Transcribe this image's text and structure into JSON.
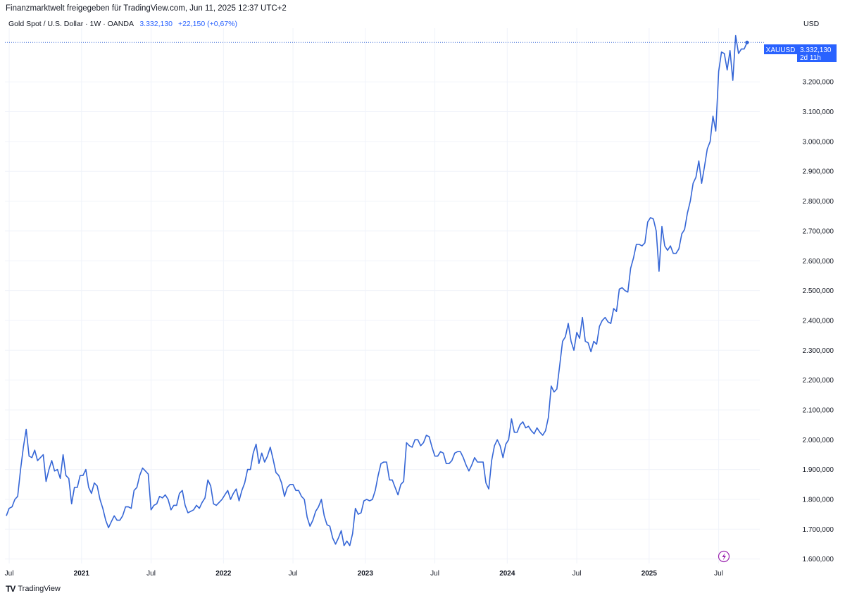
{
  "header": {
    "source_line": "Finanzmarktwelt freigegeben für TradingView.com, Jun 11, 2025 12:37 UTC+2",
    "symbol_desc": "Gold Spot / U.S. Dollar · 1W · OANDA",
    "last_price": "3.332,130",
    "change": "+22,150 (+0,67%)",
    "currency": "USD"
  },
  "price_tag": {
    "ticker": "XAUUSD",
    "value": "3.332,130",
    "countdown": "2d 11h"
  },
  "footer": {
    "brand": "TradingView",
    "brand_mark": "TV"
  },
  "icons": {
    "lightning": "lightning-icon"
  },
  "colors": {
    "line": "#3566d6",
    "accent": "#2962ff",
    "grid": "#f0f3fa",
    "text": "#131722",
    "lightning": "#9c27b0"
  },
  "chart_data": {
    "type": "line",
    "series": [
      {
        "values": [
          [
            2020.47,
            1745
          ],
          [
            2020.49,
            1770
          ],
          [
            2020.51,
            1775
          ],
          [
            2020.53,
            1800
          ],
          [
            2020.55,
            1810
          ],
          [
            2020.57,
            1900
          ],
          [
            2020.59,
            1975
          ],
          [
            2020.61,
            2035
          ],
          [
            2020.63,
            1945
          ],
          [
            2020.65,
            1940
          ],
          [
            2020.67,
            1965
          ],
          [
            2020.69,
            1930
          ],
          [
            2020.71,
            1940
          ],
          [
            2020.73,
            1950
          ],
          [
            2020.75,
            1860
          ],
          [
            2020.77,
            1900
          ],
          [
            2020.79,
            1930
          ],
          [
            2020.81,
            1895
          ],
          [
            2020.83,
            1900
          ],
          [
            2020.85,
            1870
          ],
          [
            2020.87,
            1950
          ],
          [
            2020.89,
            1880
          ],
          [
            2020.91,
            1870
          ],
          [
            2020.93,
            1785
          ],
          [
            2020.95,
            1840
          ],
          [
            2020.97,
            1840
          ],
          [
            2020.99,
            1880
          ],
          [
            2021.01,
            1880
          ],
          [
            2021.03,
            1900
          ],
          [
            2021.05,
            1840
          ],
          [
            2021.07,
            1820
          ],
          [
            2021.09,
            1855
          ],
          [
            2021.11,
            1845
          ],
          [
            2021.13,
            1800
          ],
          [
            2021.15,
            1770
          ],
          [
            2021.17,
            1730
          ],
          [
            2021.19,
            1705
          ],
          [
            2021.21,
            1725
          ],
          [
            2021.23,
            1745
          ],
          [
            2021.25,
            1730
          ],
          [
            2021.27,
            1730
          ],
          [
            2021.29,
            1745
          ],
          [
            2021.31,
            1775
          ],
          [
            2021.33,
            1775
          ],
          [
            2021.35,
            1770
          ],
          [
            2021.37,
            1830
          ],
          [
            2021.39,
            1840
          ],
          [
            2021.41,
            1880
          ],
          [
            2021.43,
            1905
          ],
          [
            2021.45,
            1895
          ],
          [
            2021.47,
            1885
          ],
          [
            2021.49,
            1765
          ],
          [
            2021.51,
            1780
          ],
          [
            2021.53,
            1785
          ],
          [
            2021.55,
            1810
          ],
          [
            2021.57,
            1805
          ],
          [
            2021.59,
            1815
          ],
          [
            2021.61,
            1800
          ],
          [
            2021.63,
            1765
          ],
          [
            2021.65,
            1780
          ],
          [
            2021.67,
            1780
          ],
          [
            2021.69,
            1820
          ],
          [
            2021.71,
            1830
          ],
          [
            2021.73,
            1780
          ],
          [
            2021.75,
            1755
          ],
          [
            2021.77,
            1760
          ],
          [
            2021.79,
            1765
          ],
          [
            2021.81,
            1780
          ],
          [
            2021.83,
            1770
          ],
          [
            2021.85,
            1790
          ],
          [
            2021.87,
            1805
          ],
          [
            2021.89,
            1865
          ],
          [
            2021.91,
            1845
          ],
          [
            2021.93,
            1785
          ],
          [
            2021.95,
            1780
          ],
          [
            2021.97,
            1790
          ],
          [
            2021.99,
            1800
          ],
          [
            2022.01,
            1815
          ],
          [
            2022.03,
            1830
          ],
          [
            2022.05,
            1800
          ],
          [
            2022.07,
            1820
          ],
          [
            2022.09,
            1835
          ],
          [
            2022.11,
            1795
          ],
          [
            2022.13,
            1830
          ],
          [
            2022.15,
            1855
          ],
          [
            2022.17,
            1900
          ],
          [
            2022.19,
            1900
          ],
          [
            2022.21,
            1955
          ],
          [
            2022.23,
            1985
          ],
          [
            2022.25,
            1920
          ],
          [
            2022.27,
            1955
          ],
          [
            2022.29,
            1925
          ],
          [
            2022.31,
            1945
          ],
          [
            2022.33,
            1975
          ],
          [
            2022.35,
            1935
          ],
          [
            2022.37,
            1890
          ],
          [
            2022.39,
            1880
          ],
          [
            2022.41,
            1855
          ],
          [
            2022.43,
            1810
          ],
          [
            2022.45,
            1840
          ],
          [
            2022.47,
            1850
          ],
          [
            2022.49,
            1850
          ],
          [
            2022.51,
            1830
          ],
          [
            2022.53,
            1830
          ],
          [
            2022.55,
            1810
          ],
          [
            2022.57,
            1800
          ],
          [
            2022.59,
            1740
          ],
          [
            2022.61,
            1710
          ],
          [
            2022.63,
            1730
          ],
          [
            2022.65,
            1760
          ],
          [
            2022.67,
            1775
          ],
          [
            2022.69,
            1800
          ],
          [
            2022.71,
            1745
          ],
          [
            2022.73,
            1715
          ],
          [
            2022.75,
            1710
          ],
          [
            2022.77,
            1670
          ],
          [
            2022.79,
            1650
          ],
          [
            2022.81,
            1670
          ],
          [
            2022.83,
            1695
          ],
          [
            2022.85,
            1645
          ],
          [
            2022.87,
            1660
          ],
          [
            2022.89,
            1645
          ],
          [
            2022.91,
            1685
          ],
          [
            2022.93,
            1770
          ],
          [
            2022.95,
            1750
          ],
          [
            2022.97,
            1755
          ],
          [
            2022.99,
            1795
          ],
          [
            2023.01,
            1800
          ],
          [
            2023.03,
            1795
          ],
          [
            2023.05,
            1800
          ],
          [
            2023.07,
            1830
          ],
          [
            2023.09,
            1880
          ],
          [
            2023.11,
            1920
          ],
          [
            2023.13,
            1925
          ],
          [
            2023.15,
            1925
          ],
          [
            2023.17,
            1865
          ],
          [
            2023.19,
            1865
          ],
          [
            2023.21,
            1840
          ],
          [
            2023.23,
            1815
          ],
          [
            2023.25,
            1850
          ],
          [
            2023.27,
            1860
          ],
          [
            2023.29,
            1990
          ],
          [
            2023.31,
            1980
          ],
          [
            2023.33,
            1975
          ],
          [
            2023.35,
            2000
          ],
          [
            2023.37,
            2000
          ],
          [
            2023.39,
            1980
          ],
          [
            2023.41,
            1990
          ],
          [
            2023.43,
            2015
          ],
          [
            2023.45,
            2010
          ],
          [
            2023.47,
            1975
          ],
          [
            2023.49,
            1945
          ],
          [
            2023.51,
            1945
          ],
          [
            2023.53,
            1960
          ],
          [
            2023.55,
            1955
          ],
          [
            2023.57,
            1920
          ],
          [
            2023.59,
            1920
          ],
          [
            2023.61,
            1930
          ],
          [
            2023.63,
            1955
          ],
          [
            2023.65,
            1960
          ],
          [
            2023.67,
            1960
          ],
          [
            2023.69,
            1940
          ],
          [
            2023.71,
            1915
          ],
          [
            2023.73,
            1895
          ],
          [
            2023.75,
            1915
          ],
          [
            2023.77,
            1940
          ],
          [
            2023.79,
            1925
          ],
          [
            2023.81,
            1925
          ],
          [
            2023.83,
            1925
          ],
          [
            2023.85,
            1855
          ],
          [
            2023.87,
            1835
          ],
          [
            2023.89,
            1930
          ],
          [
            2023.91,
            1980
          ],
          [
            2023.93,
            2000
          ],
          [
            2023.95,
            1980
          ],
          [
            2023.97,
            1940
          ],
          [
            2023.99,
            1985
          ],
          [
            2024.01,
            2000
          ],
          [
            2024.03,
            2070
          ],
          [
            2024.05,
            2025
          ],
          [
            2024.07,
            2025
          ],
          [
            2024.09,
            2050
          ],
          [
            2024.11,
            2060
          ],
          [
            2024.13,
            2040
          ],
          [
            2024.15,
            2045
          ],
          [
            2024.17,
            2030
          ],
          [
            2024.19,
            2020
          ],
          [
            2024.21,
            2040
          ],
          [
            2024.23,
            2025
          ],
          [
            2024.25,
            2015
          ],
          [
            2024.27,
            2030
          ],
          [
            2024.29,
            2075
          ],
          [
            2024.31,
            2180
          ],
          [
            2024.33,
            2160
          ],
          [
            2024.35,
            2170
          ],
          [
            2024.37,
            2250
          ],
          [
            2024.39,
            2330
          ],
          [
            2024.41,
            2345
          ],
          [
            2024.43,
            2390
          ],
          [
            2024.45,
            2330
          ],
          [
            2024.47,
            2300
          ],
          [
            2024.49,
            2360
          ],
          [
            2024.51,
            2340
          ],
          [
            2024.53,
            2410
          ],
          [
            2024.55,
            2330
          ],
          [
            2024.57,
            2325
          ],
          [
            2024.59,
            2295
          ],
          [
            2024.61,
            2330
          ],
          [
            2024.63,
            2320
          ],
          [
            2024.65,
            2380
          ],
          [
            2024.67,
            2400
          ],
          [
            2024.69,
            2410
          ],
          [
            2024.71,
            2395
          ],
          [
            2024.73,
            2390
          ],
          [
            2024.75,
            2440
          ],
          [
            2024.77,
            2430
          ],
          [
            2024.79,
            2505
          ],
          [
            2024.81,
            2510
          ],
          [
            2024.83,
            2500
          ],
          [
            2024.85,
            2495
          ],
          [
            2024.87,
            2575
          ],
          [
            2024.89,
            2610
          ],
          [
            2024.91,
            2655
          ],
          [
            2024.93,
            2655
          ],
          [
            2024.95,
            2650
          ],
          [
            2024.97,
            2660
          ],
          [
            2024.99,
            2730
          ],
          [
            2025.01,
            2745
          ],
          [
            2025.03,
            2740
          ],
          [
            2025.05,
            2700
          ],
          [
            2025.07,
            2565
          ],
          [
            2025.09,
            2715
          ],
          [
            2025.11,
            2650
          ],
          [
            2025.13,
            2635
          ],
          [
            2025.15,
            2650
          ],
          [
            2025.17,
            2625
          ],
          [
            2025.19,
            2625
          ],
          [
            2025.21,
            2640
          ],
          [
            2025.23,
            2690
          ],
          [
            2025.25,
            2705
          ],
          [
            2025.27,
            2760
          ],
          [
            2025.29,
            2800
          ],
          [
            2025.31,
            2860
          ],
          [
            2025.33,
            2880
          ],
          [
            2025.35,
            2935
          ],
          [
            2025.37,
            2860
          ],
          [
            2025.39,
            2915
          ],
          [
            2025.41,
            2975
          ],
          [
            2025.43,
            3000
          ],
          [
            2025.45,
            3085
          ],
          [
            2025.47,
            3035
          ],
          [
            2025.49,
            3235
          ],
          [
            2025.51,
            3300
          ],
          [
            2025.53,
            3295
          ],
          [
            2025.55,
            3240
          ],
          [
            2025.57,
            3305
          ],
          [
            2025.59,
            3205
          ],
          [
            2025.61,
            3355
          ],
          [
            2025.63,
            3295
          ],
          [
            2025.65,
            3310
          ],
          [
            2025.67,
            3310
          ],
          [
            2025.69,
            3332.13
          ]
        ]
      }
    ],
    "x_ticks": [
      {
        "value": 2020.49,
        "label": "Jul"
      },
      {
        "value": 2021.0,
        "label": "2021"
      },
      {
        "value": 2021.49,
        "label": "Jul"
      },
      {
        "value": 2022.0,
        "label": "2022"
      },
      {
        "value": 2022.49,
        "label": "Jul"
      },
      {
        "value": 2023.0,
        "label": "2023"
      },
      {
        "value": 2023.49,
        "label": "Jul"
      },
      {
        "value": 2024.0,
        "label": "2024"
      },
      {
        "value": 2024.49,
        "label": "Jul"
      },
      {
        "value": 2025.0,
        "label": "2025"
      },
      {
        "value": 2025.49,
        "label": "Jul"
      }
    ],
    "x_year_labels": [
      "2021",
      "2022",
      "2023",
      "2024",
      "2025"
    ],
    "y_ticks": [
      {
        "value": 1600,
        "label": "1.600,000"
      },
      {
        "value": 1700,
        "label": "1.700,000"
      },
      {
        "value": 1800,
        "label": "1.800,000"
      },
      {
        "value": 1900,
        "label": "1.900,000"
      },
      {
        "value": 2000,
        "label": "2.000,000"
      },
      {
        "value": 2100,
        "label": "2.100,000"
      },
      {
        "value": 2200,
        "label": "2.200,000"
      },
      {
        "value": 2300,
        "label": "2.300,000"
      },
      {
        "value": 2400,
        "label": "2.400,000"
      },
      {
        "value": 2500,
        "label": "2.500,000"
      },
      {
        "value": 2600,
        "label": "2.600,000"
      },
      {
        "value": 2700,
        "label": "2.700,000"
      },
      {
        "value": 2800,
        "label": "2.800,000"
      },
      {
        "value": 2900,
        "label": "2.900,000"
      },
      {
        "value": 3000,
        "label": "3.000,000"
      },
      {
        "value": 3100,
        "label": "3.100,000"
      },
      {
        "value": 3200,
        "label": "3.200,000"
      }
    ],
    "last_value": 3332.13,
    "xlim": [
      2020.46,
      2025.78
    ],
    "ylim": [
      1585,
      3380
    ],
    "grid": true,
    "xlabel": "",
    "ylabel": ""
  }
}
